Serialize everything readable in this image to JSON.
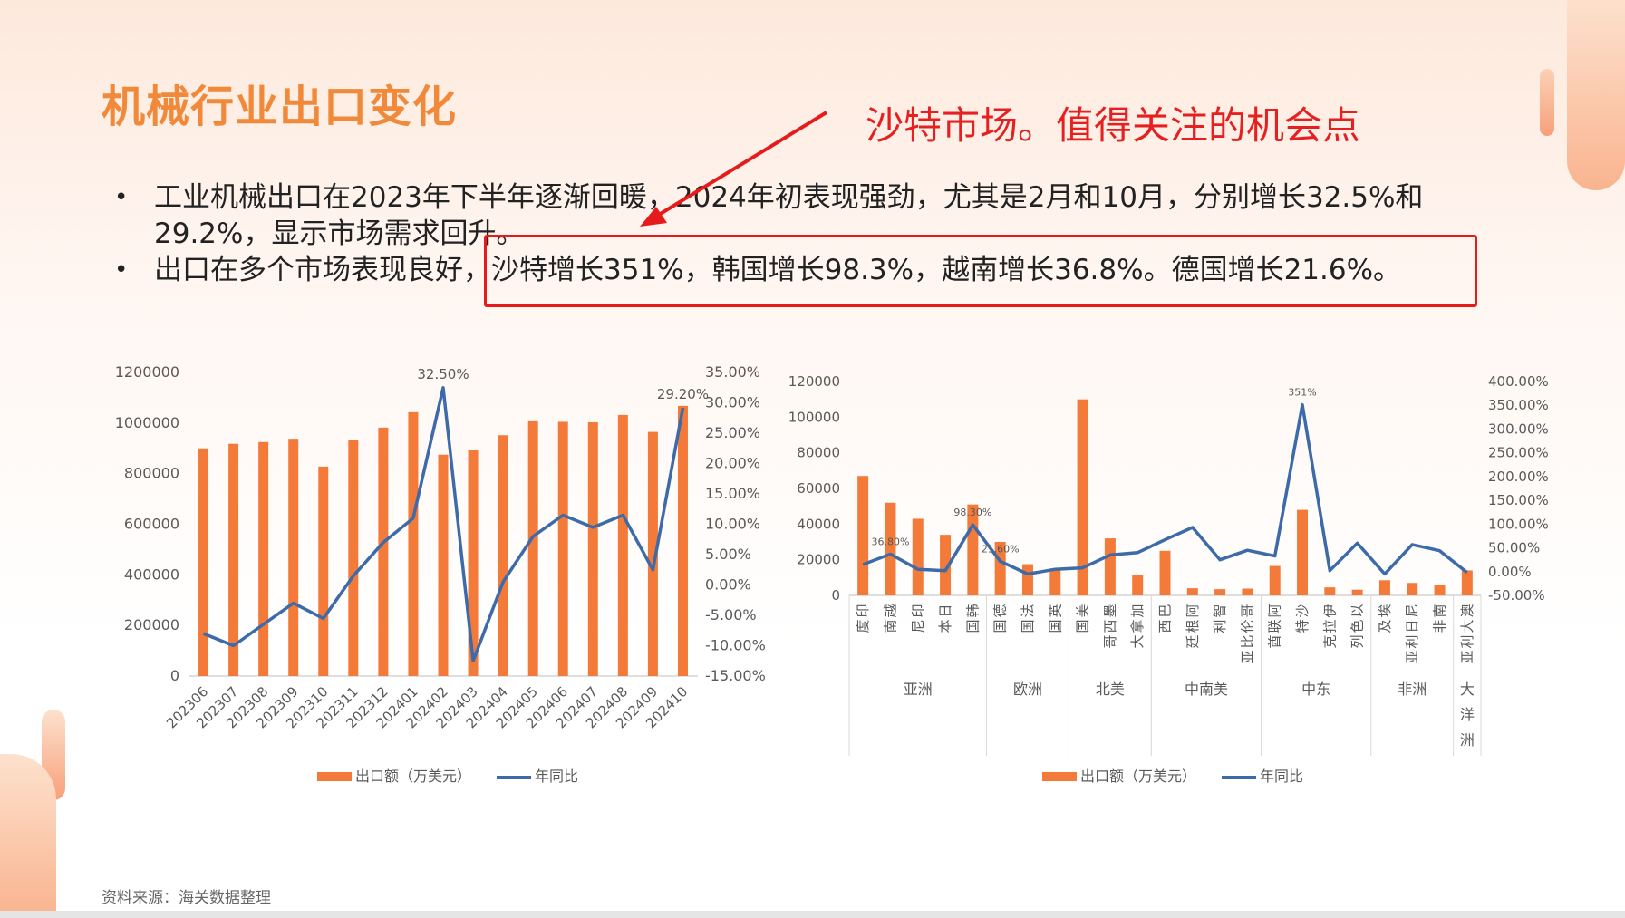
{
  "slide": {
    "title": "机械行业出口变化",
    "annotation": "沙特市场。值得关注的机会点",
    "bullets": [
      "工业机械出口在2023年下半年逐渐回暖，2024年初表现强劲，尤其是2月和10月，分别增长32.5%和29.2%，显示市场需求回升。",
      "出口在多个市场表现良好，沙特增长351%，韩国增长98.3%，越南增长36.8%。德国增长21.6%。"
    ],
    "source": "资料来源：海关数据整理"
  },
  "colors": {
    "bar": "#f47a3a",
    "line": "#3d6aa8",
    "annotation": "#e62020",
    "title": "#f08a3a"
  },
  "chart_data": [
    {
      "type": "bar",
      "combo_line": true,
      "categories": [
        "202306",
        "202307",
        "202308",
        "202309",
        "202310",
        "202311",
        "202312",
        "202401",
        "202402",
        "202403",
        "202404",
        "202405",
        "202406",
        "202407",
        "202408",
        "202409",
        "202410"
      ],
      "series": [
        {
          "name": "出口额（万美元）",
          "type": "bar",
          "axis": "left",
          "values": [
            900000,
            918000,
            925000,
            938000,
            828000,
            932000,
            982000,
            1043000,
            875000,
            892000,
            952000,
            1007000,
            1005000,
            1003000,
            1032000,
            965000,
            1068000
          ]
        },
        {
          "name": "年同比",
          "type": "line",
          "axis": "right",
          "values": [
            -8.0,
            -10.0,
            -6.5,
            -3.0,
            -5.5,
            1.5,
            7.0,
            11.0,
            32.5,
            -12.5,
            0.5,
            8.0,
            11.5,
            9.5,
            11.5,
            2.5,
            29.2
          ]
        }
      ],
      "ylim_left": [
        0,
        1200000
      ],
      "yticks_left": [
        "0",
        "200000",
        "400000",
        "600000",
        "800000",
        "1000000",
        "1200000"
      ],
      "ylim_right": [
        -15,
        35
      ],
      "yticks_right": [
        "-15.00%",
        "-10.00%",
        "-5.00%",
        "0.00%",
        "5.00%",
        "10.00%",
        "15.00%",
        "20.00%",
        "25.00%",
        "30.00%",
        "35.00%"
      ],
      "data_labels": [
        {
          "index": 8,
          "text": "32.50%"
        },
        {
          "index": 16,
          "text": "29.20%"
        }
      ],
      "legend": [
        "出口额（万美元）",
        "年同比"
      ],
      "legend_position": "bottom"
    },
    {
      "type": "bar",
      "combo_line": true,
      "categories": [
        "印度",
        "越南",
        "印尼",
        "日本",
        "韩国",
        "德国",
        "法国",
        "英国",
        "美国",
        "墨西哥",
        "加拿大",
        "巴西",
        "阿根廷",
        "智利",
        "哥伦比亚",
        "阿联酋",
        "沙特",
        "伊拉克",
        "以色列",
        "埃及",
        "尼日利亚",
        "南非",
        "澳大利亚"
      ],
      "groups": [
        {
          "name": "亚洲",
          "count": 5
        },
        {
          "name": "欧洲",
          "count": 3
        },
        {
          "name": "北美",
          "count": 3
        },
        {
          "name": "中南美",
          "count": 4
        },
        {
          "name": "中东",
          "count": 4
        },
        {
          "name": "非洲",
          "count": 3
        },
        {
          "name": "大洋洲",
          "count": 1
        }
      ],
      "series": [
        {
          "name": "出口额（万美元）",
          "type": "bar",
          "axis": "left",
          "values": [
            67000,
            52000,
            43000,
            34000,
            51000,
            30000,
            17500,
            15000,
            110000,
            32000,
            11500,
            25000,
            4000,
            3500,
            3800,
            16500,
            48000,
            4500,
            3200,
            8500,
            7000,
            6000,
            14000
          ]
        },
        {
          "name": "年同比",
          "type": "line",
          "axis": "right",
          "values": [
            15,
            36.8,
            5,
            2,
            98.3,
            21.6,
            -5,
            5,
            8,
            35,
            40,
            67,
            93,
            25,
            45,
            33,
            351,
            2,
            60,
            -5,
            57,
            44,
            -2
          ]
        }
      ],
      "ylim_left": [
        0,
        120000
      ],
      "yticks_left": [
        "0",
        "20000",
        "40000",
        "60000",
        "80000",
        "100000",
        "120000"
      ],
      "ylim_right": [
        -50,
        400
      ],
      "yticks_right": [
        "-50.00%",
        "0.00%",
        "50.00%",
        "100.00%",
        "150.00%",
        "200.00%",
        "250.00%",
        "300.00%",
        "350.00%",
        "400.00%"
      ],
      "data_labels": [
        {
          "index": 1,
          "text": "36.80%"
        },
        {
          "index": 4,
          "text": "98.30%"
        },
        {
          "index": 5,
          "text": "21.60%"
        },
        {
          "index": 16,
          "text": "351%"
        }
      ],
      "legend": [
        "出口额（万美元）",
        "年同比"
      ],
      "legend_position": "bottom"
    }
  ]
}
